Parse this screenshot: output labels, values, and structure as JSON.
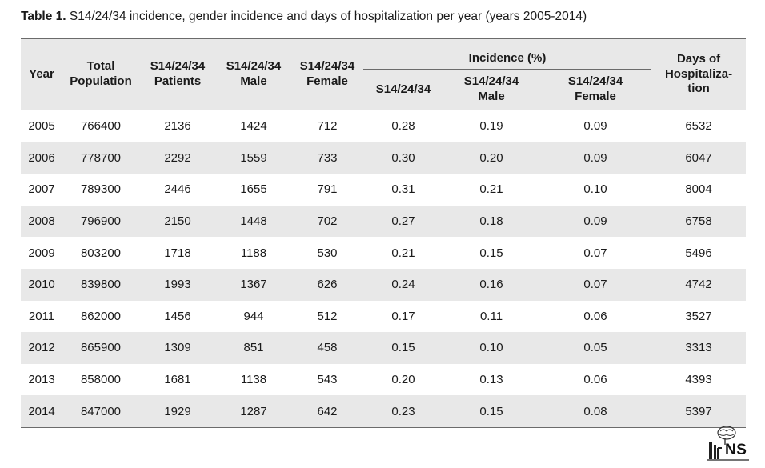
{
  "caption": {
    "label": "Table 1.",
    "text": " S14/24/34 incidence, gender incidence and days of hospitalization per year (years 2005-2014)"
  },
  "headers": {
    "year": "Year",
    "total_population": "Total Population",
    "patients": "S14/24/34 Patients",
    "male": "S14/24/34 Male",
    "female": "S14/24/34 Female",
    "incidence_group": "Incidence (%)",
    "inc_total": "S14/24/34",
    "inc_male": "S14/24/34 Male",
    "inc_female": "S14/24/34 Female",
    "hospitalization": "Days of Hospitaliza-tion"
  },
  "rows": [
    [
      "2005",
      "766400",
      "2136",
      "1424",
      "712",
      "0.28",
      "0.19",
      "0.09",
      "6532"
    ],
    [
      "2006",
      "778700",
      "2292",
      "1559",
      "733",
      "0.30",
      "0.20",
      "0.09",
      "6047"
    ],
    [
      "2007",
      "789300",
      "2446",
      "1655",
      "791",
      "0.31",
      "0.21",
      "0.10",
      "8004"
    ],
    [
      "2008",
      "796900",
      "2150",
      "1448",
      "702",
      "0.27",
      "0.18",
      "0.09",
      "6758"
    ],
    [
      "2009",
      "803200",
      "1718",
      "1188",
      "530",
      "0.21",
      "0.15",
      "0.07",
      "5496"
    ],
    [
      "2010",
      "839800",
      "1993",
      "1367",
      "626",
      "0.24",
      "0.16",
      "0.07",
      "4742"
    ],
    [
      "2011",
      "862000",
      "1456",
      "944",
      "512",
      "0.17",
      "0.11",
      "0.06",
      "3527"
    ],
    [
      "2012",
      "865900",
      "1309",
      "851",
      "458",
      "0.15",
      "0.10",
      "0.05",
      "3313"
    ],
    [
      "2013",
      "858000",
      "1681",
      "1138",
      "543",
      "0.20",
      "0.13",
      "0.06",
      "4393"
    ],
    [
      "2014",
      "847000",
      "1929",
      "1287",
      "642",
      "0.23",
      "0.15",
      "0.08",
      "5397"
    ]
  ],
  "logo": {
    "text": "NS"
  }
}
